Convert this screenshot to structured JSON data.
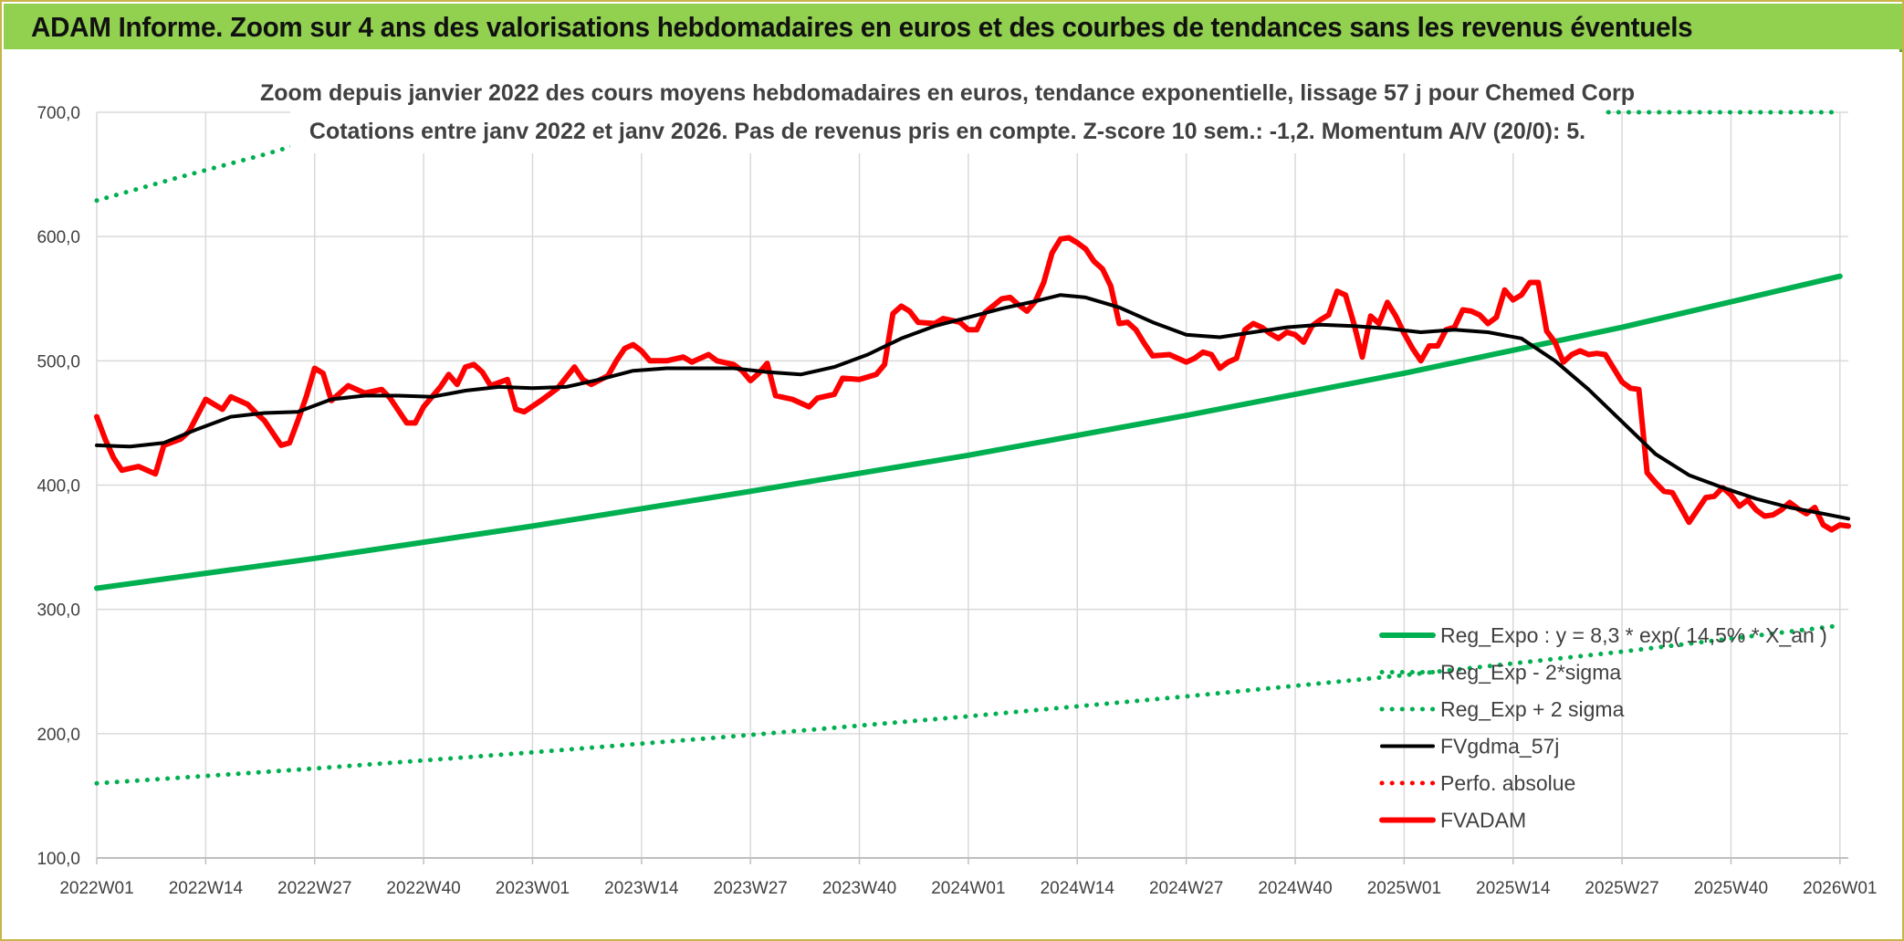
{
  "header": {
    "title": "ADAM Informe. Zoom sur 4 ans des valorisations hebdomadaires en euros et des courbes de tendances sans les revenus éventuels"
  },
  "colors": {
    "header_bg": "#92d050",
    "price": "#ff0000",
    "trend": "#00b050",
    "sma": "#000000",
    "grid": "#d9d9d9",
    "text": "#404040"
  },
  "chart_data": {
    "type": "line",
    "title": "Zoom depuis janvier 2022 des cours moyens hebdomadaires en euros, tendance exponentielle, lissage 57 j pour Chemed Corp",
    "subtitle": "Cotations entre janv 2022 et janv 2026. Pas de revenus pris en compte. Z-score 10 sem.: -1,2. Momentum A/V (20/0): 5.",
    "xlabel": "",
    "ylabel": "",
    "ylim": [
      100,
      700
    ],
    "yticks": [
      100,
      200,
      300,
      400,
      500,
      600,
      700
    ],
    "ytick_labels": [
      "100,0",
      "200,0",
      "300,0",
      "400,0",
      "500,0",
      "600,0",
      "700,0"
    ],
    "x_range": [
      0,
      209
    ],
    "x_ticks": [
      {
        "x": 0,
        "label": "2022W01"
      },
      {
        "x": 13,
        "label": "2022W14"
      },
      {
        "x": 26,
        "label": "2022W27"
      },
      {
        "x": 39,
        "label": "2022W40"
      },
      {
        "x": 52,
        "label": "2023W01"
      },
      {
        "x": 65,
        "label": "2023W14"
      },
      {
        "x": 78,
        "label": "2023W27"
      },
      {
        "x": 91,
        "label": "2023W40"
      },
      {
        "x": 104,
        "label": "2024W01"
      },
      {
        "x": 117,
        "label": "2024W14"
      },
      {
        "x": 130,
        "label": "2024W27"
      },
      {
        "x": 143,
        "label": "2024W40"
      },
      {
        "x": 156,
        "label": "2025W01"
      },
      {
        "x": 169,
        "label": "2025W14"
      },
      {
        "x": 182,
        "label": "2025W27"
      },
      {
        "x": 195,
        "label": "2025W40"
      },
      {
        "x": 208,
        "label": "2026W01"
      }
    ],
    "grid": true,
    "legend_position": "bottom-right",
    "series": [
      {
        "name": "Reg_Expo : y = 8,3 * exp( 14,5% * X_an )",
        "style": "solid-thick",
        "color": "#00b050",
        "points": [
          [
            0,
            317
          ],
          [
            26,
            341
          ],
          [
            52,
            367
          ],
          [
            78,
            395
          ],
          [
            104,
            424
          ],
          [
            130,
            456
          ],
          [
            156,
            490
          ],
          [
            182,
            527
          ],
          [
            208,
            568
          ]
        ]
      },
      {
        "name": "Reg_Exp - 2*sigma",
        "style": "dotted",
        "color": "#00b050",
        "points": [
          [
            0,
            160
          ],
          [
            26,
            172
          ],
          [
            52,
            185
          ],
          [
            78,
            199
          ],
          [
            104,
            214
          ],
          [
            130,
            230
          ],
          [
            156,
            247
          ],
          [
            182,
            266
          ],
          [
            208,
            287
          ]
        ]
      },
      {
        "name": "Reg_Exp + 2 sigma",
        "style": "dotted",
        "color": "#00b050",
        "points": [
          [
            0,
            629
          ],
          [
            10,
            648
          ],
          [
            20,
            666
          ],
          [
            24,
            674
          ],
          [
            180,
            700
          ],
          [
            208,
            700
          ]
        ]
      },
      {
        "name": "FVgdma_57j",
        "style": "solid",
        "color": "#000000",
        "points": [
          [
            0,
            432
          ],
          [
            4,
            431
          ],
          [
            8,
            434
          ],
          [
            12,
            445
          ],
          [
            16,
            455
          ],
          [
            20,
            458
          ],
          [
            24,
            459
          ],
          [
            28,
            469
          ],
          [
            32,
            472
          ],
          [
            36,
            472
          ],
          [
            40,
            471
          ],
          [
            44,
            476
          ],
          [
            48,
            479
          ],
          [
            52,
            478
          ],
          [
            56,
            479
          ],
          [
            60,
            485
          ],
          [
            64,
            492
          ],
          [
            68,
            494
          ],
          [
            72,
            494
          ],
          [
            76,
            494
          ],
          [
            80,
            491
          ],
          [
            84,
            489
          ],
          [
            88,
            495
          ],
          [
            92,
            505
          ],
          [
            96,
            518
          ],
          [
            100,
            528
          ],
          [
            104,
            535
          ],
          [
            108,
            542
          ],
          [
            112,
            548
          ],
          [
            115,
            553
          ],
          [
            118,
            551
          ],
          [
            122,
            543
          ],
          [
            126,
            531
          ],
          [
            130,
            521
          ],
          [
            134,
            519
          ],
          [
            138,
            523
          ],
          [
            142,
            527
          ],
          [
            146,
            529
          ],
          [
            150,
            528
          ],
          [
            154,
            526
          ],
          [
            158,
            523
          ],
          [
            162,
            525
          ],
          [
            166,
            523
          ],
          [
            170,
            518
          ],
          [
            174,
            500
          ],
          [
            178,
            477
          ],
          [
            182,
            451
          ],
          [
            186,
            425
          ],
          [
            190,
            408
          ],
          [
            194,
            398
          ],
          [
            198,
            389
          ],
          [
            202,
            382
          ],
          [
            206,
            377
          ],
          [
            209,
            373
          ]
        ]
      },
      {
        "name": "Perfo. absolue",
        "style": "dotted",
        "color": "#ff0000",
        "points": []
      },
      {
        "name": "FVADAM",
        "style": "solid-thick",
        "color": "#ff0000",
        "points": [
          [
            0,
            455
          ],
          [
            1,
            437
          ],
          [
            2,
            422
          ],
          [
            3,
            412
          ],
          [
            5,
            415
          ],
          [
            7,
            409
          ],
          [
            8,
            432
          ],
          [
            10,
            437
          ],
          [
            11,
            443
          ],
          [
            13,
            469
          ],
          [
            15,
            461
          ],
          [
            16,
            471
          ],
          [
            18,
            465
          ],
          [
            19,
            458
          ],
          [
            20,
            452
          ],
          [
            22,
            432
          ],
          [
            23,
            434
          ],
          [
            24,
            452
          ],
          [
            25,
            471
          ],
          [
            26,
            494
          ],
          [
            27,
            490
          ],
          [
            28,
            468
          ],
          [
            30,
            480
          ],
          [
            32,
            474
          ],
          [
            34,
            477
          ],
          [
            35,
            470
          ],
          [
            37,
            450
          ],
          [
            38,
            450
          ],
          [
            39,
            463
          ],
          [
            41,
            479
          ],
          [
            42,
            489
          ],
          [
            43,
            481
          ],
          [
            44,
            495
          ],
          [
            45,
            497
          ],
          [
            46,
            491
          ],
          [
            47,
            480
          ],
          [
            49,
            485
          ],
          [
            50,
            461
          ],
          [
            51,
            459
          ],
          [
            53,
            468
          ],
          [
            55,
            478
          ],
          [
            57,
            495
          ],
          [
            58,
            485
          ],
          [
            59,
            481
          ],
          [
            61,
            488
          ],
          [
            62,
            500
          ],
          [
            63,
            510
          ],
          [
            64,
            513
          ],
          [
            65,
            508
          ],
          [
            66,
            500
          ],
          [
            68,
            500
          ],
          [
            70,
            503
          ],
          [
            71,
            499
          ],
          [
            73,
            505
          ],
          [
            74,
            500
          ],
          [
            76,
            497
          ],
          [
            77,
            492
          ],
          [
            78,
            484
          ],
          [
            79,
            490
          ],
          [
            80,
            498
          ],
          [
            81,
            472
          ],
          [
            83,
            469
          ],
          [
            85,
            463
          ],
          [
            86,
            470
          ],
          [
            88,
            473
          ],
          [
            89,
            486
          ],
          [
            91,
            485
          ],
          [
            93,
            489
          ],
          [
            94,
            497
          ],
          [
            95,
            538
          ],
          [
            96,
            544
          ],
          [
            97,
            540
          ],
          [
            98,
            531
          ],
          [
            100,
            530
          ],
          [
            101,
            534
          ],
          [
            103,
            531
          ],
          [
            104,
            525
          ],
          [
            105,
            525
          ],
          [
            106,
            539
          ],
          [
            108,
            550
          ],
          [
            109,
            551
          ],
          [
            110,
            545
          ],
          [
            111,
            540
          ],
          [
            112,
            548
          ],
          [
            113,
            563
          ],
          [
            114,
            587
          ],
          [
            115,
            598
          ],
          [
            116,
            599
          ],
          [
            117,
            595
          ],
          [
            118,
            590
          ],
          [
            119,
            580
          ],
          [
            120,
            574
          ],
          [
            121,
            560
          ],
          [
            122,
            530
          ],
          [
            123,
            531
          ],
          [
            124,
            525
          ],
          [
            125,
            514
          ],
          [
            126,
            504
          ],
          [
            128,
            505
          ],
          [
            129,
            502
          ],
          [
            130,
            499
          ],
          [
            131,
            502
          ],
          [
            132,
            507
          ],
          [
            133,
            505
          ],
          [
            134,
            494
          ],
          [
            135,
            499
          ],
          [
            136,
            502
          ],
          [
            137,
            525
          ],
          [
            138,
            530
          ],
          [
            139,
            527
          ],
          [
            140,
            522
          ],
          [
            141,
            518
          ],
          [
            142,
            523
          ],
          [
            143,
            521
          ],
          [
            144,
            515
          ],
          [
            145,
            528
          ],
          [
            146,
            533
          ],
          [
            147,
            537
          ],
          [
            148,
            556
          ],
          [
            149,
            553
          ],
          [
            150,
            530
          ],
          [
            151,
            503
          ],
          [
            152,
            536
          ],
          [
            153,
            530
          ],
          [
            154,
            547
          ],
          [
            155,
            536
          ],
          [
            156,
            522
          ],
          [
            157,
            510
          ],
          [
            158,
            500
          ],
          [
            159,
            512
          ],
          [
            160,
            512
          ],
          [
            161,
            525
          ],
          [
            162,
            527
          ],
          [
            163,
            541
          ],
          [
            164,
            540
          ],
          [
            165,
            537
          ],
          [
            166,
            530
          ],
          [
            167,
            535
          ],
          [
            168,
            557
          ],
          [
            169,
            549
          ],
          [
            170,
            553
          ],
          [
            171,
            563
          ],
          [
            172,
            563
          ],
          [
            173,
            524
          ],
          [
            174,
            515
          ],
          [
            175,
            499
          ],
          [
            176,
            505
          ],
          [
            177,
            508
          ],
          [
            178,
            505
          ],
          [
            179,
            506
          ],
          [
            180,
            505
          ],
          [
            181,
            494
          ],
          [
            182,
            483
          ],
          [
            183,
            478
          ],
          [
            184,
            477
          ],
          [
            185,
            410
          ],
          [
            186,
            402
          ],
          [
            187,
            395
          ],
          [
            188,
            394
          ],
          [
            189,
            382
          ],
          [
            190,
            370
          ],
          [
            191,
            380
          ],
          [
            192,
            390
          ],
          [
            193,
            391
          ],
          [
            194,
            398
          ],
          [
            195,
            392
          ],
          [
            196,
            383
          ],
          [
            197,
            388
          ],
          [
            198,
            380
          ],
          [
            199,
            375
          ],
          [
            200,
            376
          ],
          [
            201,
            380
          ],
          [
            202,
            386
          ],
          [
            203,
            381
          ],
          [
            204,
            377
          ],
          [
            205,
            382
          ],
          [
            206,
            368
          ],
          [
            207,
            364
          ],
          [
            208,
            368
          ],
          [
            209,
            367
          ]
        ]
      }
    ]
  }
}
